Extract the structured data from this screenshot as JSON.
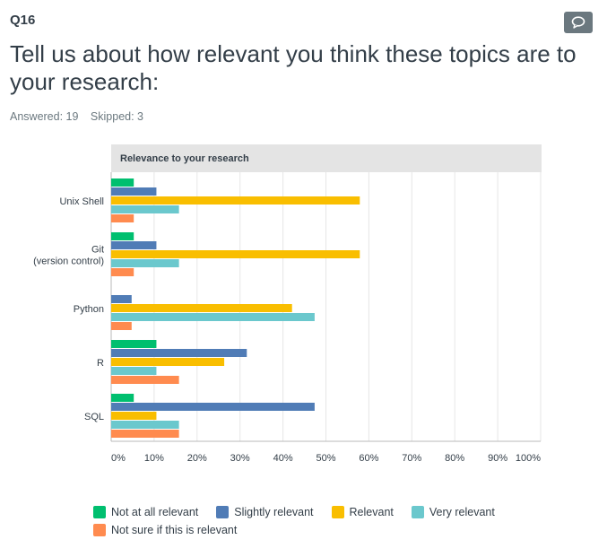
{
  "question": {
    "number": "Q16",
    "title": "Tell us about how relevant you think these topics are to your research:",
    "answered": "Answered: 19",
    "skipped": "Skipped: 3"
  },
  "icons": {
    "comment": "comment-icon"
  },
  "chart_data": {
    "type": "bar",
    "orientation": "horizontal",
    "title": "Relevance to your research",
    "categories": [
      "Unix Shell",
      "Git (version control)",
      "Python",
      "R",
      "SQL"
    ],
    "series": [
      {
        "name": "Not at all relevant",
        "color": "#00bf6f",
        "values": [
          5.26,
          5.26,
          0,
          10.53,
          5.26
        ]
      },
      {
        "name": "Slightly relevant",
        "color": "#507cb6",
        "values": [
          10.53,
          10.53,
          4.76,
          31.58,
          47.37
        ]
      },
      {
        "name": "Relevant",
        "color": "#f9be00",
        "values": [
          57.89,
          57.89,
          42.11,
          26.32,
          10.53
        ]
      },
      {
        "name": "Very relevant",
        "color": "#6bc8cd",
        "values": [
          15.79,
          15.79,
          47.37,
          10.53,
          15.79
        ]
      },
      {
        "name": "Not sure if this is relevant",
        "color": "#ff8b4f",
        "values": [
          5.26,
          5.26,
          4.76,
          15.79,
          15.79
        ]
      }
    ],
    "xticks": [
      "0%",
      "10%",
      "20%",
      "30%",
      "40%",
      "50%",
      "60%",
      "70%",
      "80%",
      "90%",
      "100%"
    ],
    "xlim": [
      0,
      100
    ],
    "grid": true,
    "legend": "bottom"
  }
}
